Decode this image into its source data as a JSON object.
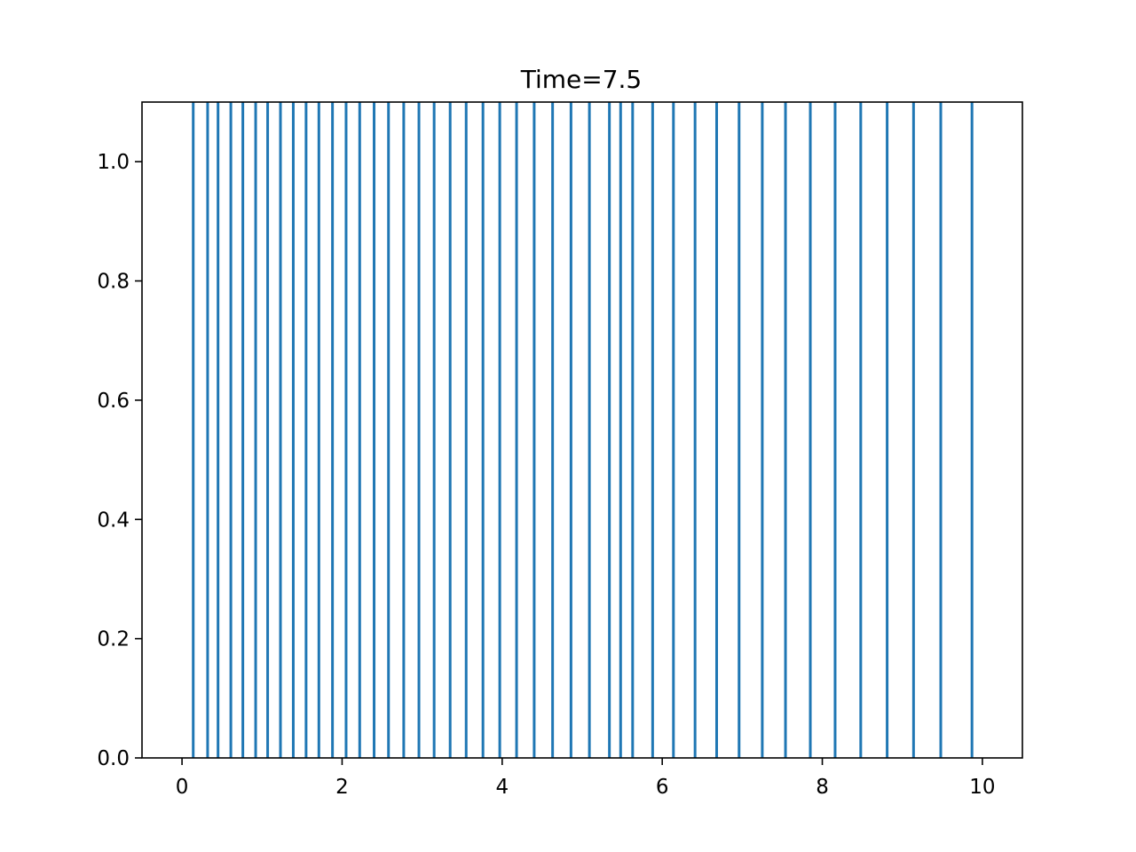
{
  "chart_data": {
    "type": "line",
    "subtype": "vertical-lines",
    "title": "Time=7.5",
    "xlabel": "",
    "ylabel": "",
    "xlim": [
      -0.5,
      10.5
    ],
    "ylim": [
      0.0,
      1.1
    ],
    "xticks": [
      0,
      2,
      4,
      6,
      8,
      10
    ],
    "xtick_labels": [
      "0",
      "2",
      "4",
      "6",
      "8",
      "10"
    ],
    "yticks": [
      0.0,
      0.2,
      0.4,
      0.6,
      0.8,
      1.0
    ],
    "ytick_labels": [
      "0.0",
      "0.2",
      "0.4",
      "0.6",
      "0.8",
      "1.0"
    ],
    "grid": false,
    "legend": "none",
    "series": [
      {
        "color": "#1f77b4",
        "x": [
          0.14,
          0.32,
          0.45,
          0.61,
          0.76,
          0.92,
          1.07,
          1.23,
          1.39,
          1.55,
          1.71,
          1.88,
          2.05,
          2.22,
          2.4,
          2.58,
          2.77,
          2.96,
          3.15,
          3.35,
          3.55,
          3.76,
          3.97,
          4.18,
          4.4,
          4.63,
          4.86,
          5.09,
          5.34,
          5.48,
          5.63,
          5.88,
          6.14,
          6.41,
          6.68,
          6.96,
          7.25,
          7.54,
          7.85,
          8.16,
          8.48,
          8.81,
          9.14,
          9.48,
          9.87
        ],
        "y_top": 1.1,
        "y_bottom": 0.0
      }
    ]
  }
}
